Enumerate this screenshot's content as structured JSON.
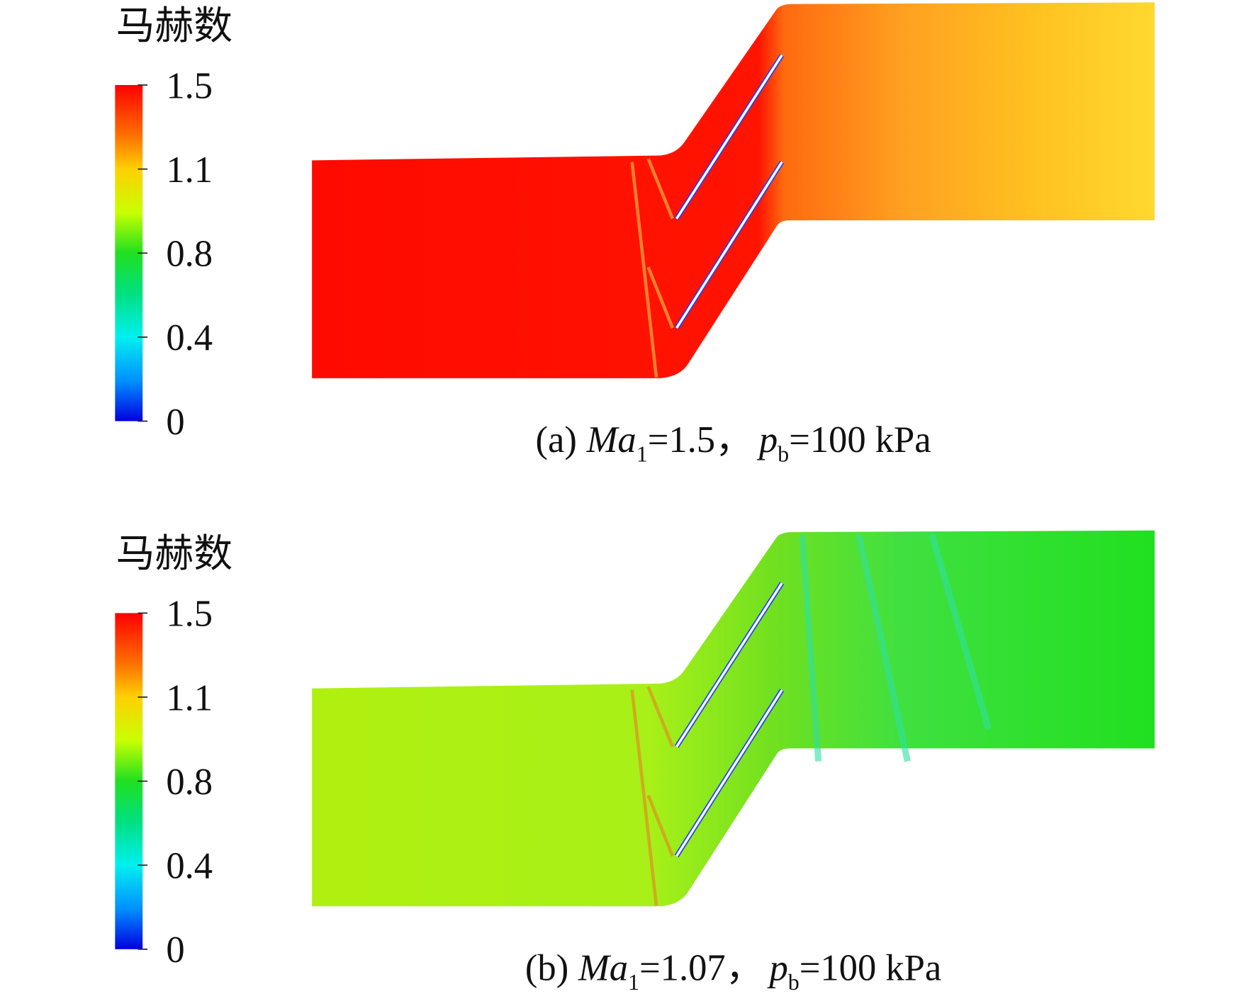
{
  "panels": [
    {
      "colorbar_title": "马赫数",
      "colorbar_ticks": [
        1.5,
        1.1,
        0.8,
        0.4,
        0
      ],
      "caption": {
        "label": "(a)",
        "var": "Ma",
        "var_sub": "1",
        "var_value": "=1.5，",
        "var2": "p",
        "var2_sub": "b",
        "var2_value": "=100 kPa"
      }
    },
    {
      "colorbar_title": "马赫数",
      "colorbar_ticks": [
        1.5,
        1.1,
        0.8,
        0.4,
        0
      ],
      "caption": {
        "label": "(b)",
        "var": "Ma",
        "var_sub": "1",
        "var_value": "=1.07，",
        "var2": "p",
        "var2_sub": "b",
        "var2_value": "=100 kPa"
      }
    }
  ]
}
